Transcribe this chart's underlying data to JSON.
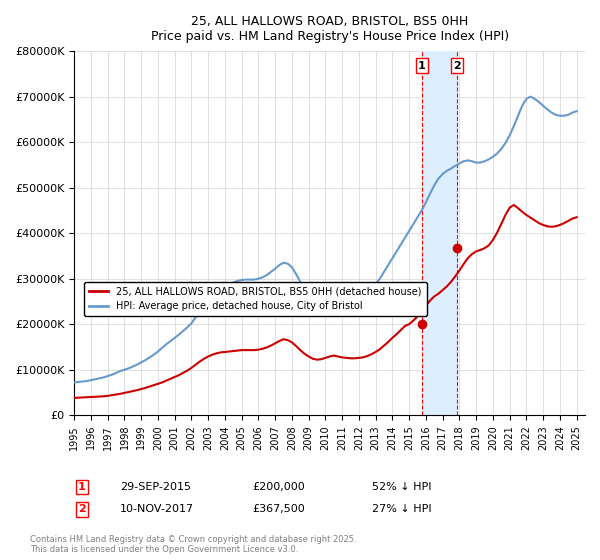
{
  "title": "25, ALL HALLOWS ROAD, BRISTOL, BS5 0HH",
  "subtitle": "Price paid vs. HM Land Registry's House Price Index (HPI)",
  "ylabel": "",
  "ylim": [
    0,
    800000
  ],
  "yticks": [
    0,
    100000,
    200000,
    300000,
    400000,
    500000,
    600000,
    700000,
    800000
  ],
  "xlim": [
    1995,
    2025.5
  ],
  "transaction1": {
    "date": 2015.75,
    "price": 200000,
    "label": "1",
    "pct": "52% ↓ HPI",
    "date_str": "29-SEP-2015"
  },
  "transaction2": {
    "date": 2017.85,
    "price": 367500,
    "label": "2",
    "pct": "27% ↓ HPI",
    "date_str": "10-NOV-2017"
  },
  "hpi_color": "#6699cc",
  "property_color": "#cc0000",
  "shade_color": "#ddeeff",
  "legend_property": "25, ALL HALLOWS ROAD, BRISTOL, BS5 0HH (detached house)",
  "legend_hpi": "HPI: Average price, detached house, City of Bristol",
  "footnote": "Contains HM Land Registry data © Crown copyright and database right 2025.\nThis data is licensed under the Open Government Licence v3.0.",
  "hpi_x": [
    1995,
    1995.25,
    1995.5,
    1995.75,
    1996,
    1996.25,
    1996.5,
    1996.75,
    1997,
    1997.25,
    1997.5,
    1997.75,
    1998,
    1998.25,
    1998.5,
    1998.75,
    1999,
    1999.25,
    1999.5,
    1999.75,
    2000,
    2000.25,
    2000.5,
    2000.75,
    2001,
    2001.25,
    2001.5,
    2001.75,
    2002,
    2002.25,
    2002.5,
    2002.75,
    2003,
    2003.25,
    2003.5,
    2003.75,
    2004,
    2004.25,
    2004.5,
    2004.75,
    2005,
    2005.25,
    2005.5,
    2005.75,
    2006,
    2006.25,
    2006.5,
    2006.75,
    2007,
    2007.25,
    2007.5,
    2007.75,
    2008,
    2008.25,
    2008.5,
    2008.75,
    2009,
    2009.25,
    2009.5,
    2009.75,
    2010,
    2010.25,
    2010.5,
    2010.75,
    2011,
    2011.25,
    2011.5,
    2011.75,
    2012,
    2012.25,
    2012.5,
    2012.75,
    2013,
    2013.25,
    2013.5,
    2013.75,
    2014,
    2014.25,
    2014.5,
    2014.75,
    2015,
    2015.25,
    2015.5,
    2015.75,
    2016,
    2016.25,
    2016.5,
    2016.75,
    2017,
    2017.25,
    2017.5,
    2017.75,
    2018,
    2018.25,
    2018.5,
    2018.75,
    2019,
    2019.25,
    2019.5,
    2019.75,
    2020,
    2020.25,
    2020.5,
    2020.75,
    2021,
    2021.25,
    2021.5,
    2021.75,
    2022,
    2022.25,
    2022.5,
    2022.75,
    2023,
    2023.25,
    2023.5,
    2023.75,
    2024,
    2024.25,
    2024.5,
    2024.75,
    2025
  ],
  "hpi_y": [
    72000,
    73000,
    74000,
    75000,
    77000,
    79000,
    81000,
    83000,
    86000,
    89000,
    93000,
    97000,
    100000,
    103000,
    107000,
    111000,
    116000,
    121000,
    127000,
    133000,
    140000,
    148000,
    156000,
    163000,
    170000,
    177000,
    185000,
    193000,
    202000,
    215000,
    228000,
    242000,
    255000,
    265000,
    272000,
    278000,
    283000,
    288000,
    292000,
    295000,
    297000,
    298000,
    298000,
    298000,
    300000,
    303000,
    308000,
    315000,
    322000,
    330000,
    335000,
    333000,
    325000,
    310000,
    293000,
    278000,
    267000,
    260000,
    256000,
    258000,
    263000,
    268000,
    270000,
    268000,
    265000,
    263000,
    262000,
    262000,
    263000,
    265000,
    270000,
    278000,
    288000,
    300000,
    315000,
    330000,
    345000,
    360000,
    375000,
    390000,
    405000,
    420000,
    435000,
    450000,
    468000,
    487000,
    505000,
    520000,
    530000,
    537000,
    542000,
    548000,
    553000,
    558000,
    560000,
    558000,
    555000,
    555000,
    558000,
    562000,
    568000,
    575000,
    585000,
    598000,
    615000,
    635000,
    658000,
    680000,
    695000,
    700000,
    695000,
    688000,
    680000,
    672000,
    665000,
    660000,
    658000,
    658000,
    660000,
    665000,
    668000
  ],
  "prop_x": [
    1995,
    1995.25,
    1995.5,
    1995.75,
    1996,
    1996.25,
    1996.5,
    1996.75,
    1997,
    1997.25,
    1997.5,
    1997.75,
    1998,
    1998.25,
    1998.5,
    1998.75,
    1999,
    1999.25,
    1999.5,
    1999.75,
    2000,
    2000.25,
    2000.5,
    2000.75,
    2001,
    2001.25,
    2001.5,
    2001.75,
    2002,
    2002.25,
    2002.5,
    2002.75,
    2003,
    2003.25,
    2003.5,
    2003.75,
    2004,
    2004.25,
    2004.5,
    2004.75,
    2005,
    2005.25,
    2005.5,
    2005.75,
    2006,
    2006.25,
    2006.5,
    2006.75,
    2007,
    2007.25,
    2007.5,
    2007.75,
    2008,
    2008.25,
    2008.5,
    2008.75,
    2009,
    2009.25,
    2009.5,
    2009.75,
    2010,
    2010.25,
    2010.5,
    2010.75,
    2011,
    2011.25,
    2011.5,
    2011.75,
    2012,
    2012.25,
    2012.5,
    2012.75,
    2013,
    2013.25,
    2013.5,
    2013.75,
    2014,
    2014.25,
    2014.5,
    2014.75,
    2015,
    2015.25,
    2015.5,
    2015.75,
    2016,
    2016.25,
    2016.5,
    2016.75,
    2017,
    2017.25,
    2017.5,
    2017.75,
    2018,
    2018.25,
    2018.5,
    2018.75,
    2019,
    2019.25,
    2019.5,
    2019.75,
    2020,
    2020.25,
    2020.5,
    2020.75,
    2021,
    2021.25,
    2021.5,
    2021.75,
    2022,
    2022.25,
    2022.5,
    2022.75,
    2023,
    2023.25,
    2023.5,
    2023.75,
    2024,
    2024.25,
    2024.5,
    2024.75,
    2025
  ],
  "prop_y": [
    38000,
    38500,
    39000,
    39500,
    40000,
    40500,
    41000,
    41500,
    42500,
    44000,
    45500,
    47000,
    49000,
    51000,
    53000,
    55000,
    57500,
    60000,
    63000,
    66000,
    69000,
    72000,
    76000,
    80000,
    84000,
    88000,
    93000,
    98000,
    104000,
    111000,
    118000,
    124000,
    129000,
    133000,
    136000,
    138000,
    139000,
    140000,
    141000,
    142000,
    143000,
    143000,
    143000,
    143000,
    144000,
    146000,
    149000,
    153000,
    158000,
    163000,
    167000,
    165000,
    160000,
    152000,
    143000,
    135000,
    129000,
    124000,
    122000,
    123000,
    126000,
    129000,
    131000,
    129000,
    127000,
    126000,
    125000,
    125000,
    126000,
    127000,
    130000,
    134000,
    139000,
    145000,
    153000,
    161000,
    170000,
    178000,
    187000,
    196000,
    200000,
    208000,
    217000,
    229000,
    241000,
    252000,
    261000,
    267000,
    275000,
    283000,
    293000,
    305000,
    318000,
    332000,
    345000,
    354000,
    360000,
    363000,
    367000,
    373000,
    385000,
    401000,
    420000,
    440000,
    456000,
    462000,
    455000,
    447000,
    440000,
    434000,
    428000,
    422000,
    418000,
    415000,
    414000,
    415000,
    418000,
    422000,
    427000,
    432000,
    435000
  ]
}
